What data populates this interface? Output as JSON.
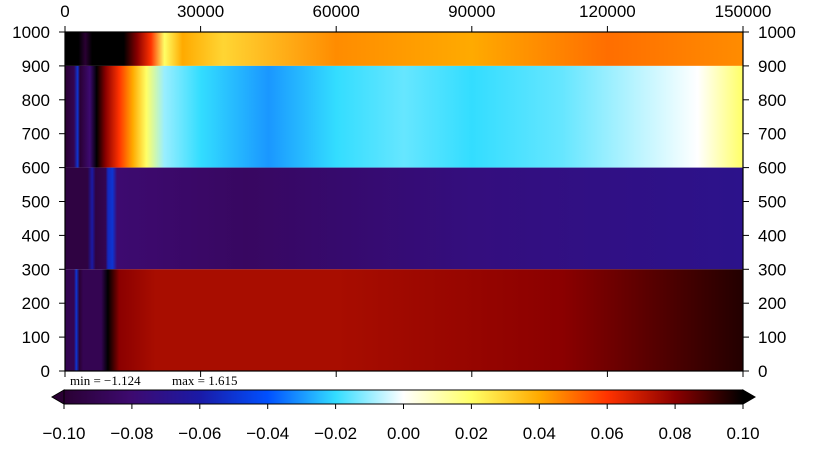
{
  "chart_data": {
    "type": "heatmap",
    "title": "",
    "xlabel": "",
    "ylabel": "",
    "xlim": [
      0,
      150000
    ],
    "ylim": [
      0,
      1000
    ],
    "x_ticks": [
      "0",
      "30000",
      "60000",
      "90000",
      "120000",
      "150000"
    ],
    "y_ticks": [
      "0",
      "100",
      "200",
      "300",
      "400",
      "500",
      "600",
      "700",
      "800",
      "900",
      "1000"
    ],
    "stats": {
      "min_text": "min = −1.124",
      "max_text": "max = 1.615",
      "min": -1.124,
      "max": 1.615
    },
    "bands": [
      {
        "y_range": [
          900,
          1000
        ],
        "profile": [
          [
            0,
            0.1
          ],
          [
            3000,
            0.1
          ],
          [
            4500,
            -0.1
          ],
          [
            6000,
            0.1
          ],
          [
            13000,
            0.1
          ],
          [
            16000,
            0.08
          ],
          [
            19000,
            0.06
          ],
          [
            22000,
            0.02
          ],
          [
            26000,
            0.04
          ],
          [
            35000,
            0.03
          ],
          [
            60000,
            0.045
          ],
          [
            90000,
            0.04
          ],
          [
            120000,
            0.05
          ],
          [
            150000,
            0.045
          ]
        ]
      },
      {
        "y_range": [
          600,
          900
        ],
        "profile": [
          [
            0,
            -0.1
          ],
          [
            2000,
            -0.09
          ],
          [
            2800,
            -0.05
          ],
          [
            3300,
            -0.1
          ],
          [
            5500,
            -0.08
          ],
          [
            7000,
            0.1
          ],
          [
            9000,
            0.08
          ],
          [
            12000,
            0.06
          ],
          [
            15000,
            0.04
          ],
          [
            18000,
            0.02
          ],
          [
            22000,
            -0.01
          ],
          [
            30000,
            -0.02
          ],
          [
            45000,
            -0.03
          ],
          [
            60000,
            -0.02
          ],
          [
            75000,
            -0.015
          ],
          [
            90000,
            -0.02
          ],
          [
            110000,
            -0.015
          ],
          [
            130000,
            -0.005
          ],
          [
            140000,
            0.0
          ],
          [
            150000,
            0.02
          ]
        ]
      },
      {
        "y_range": [
          300,
          600
        ],
        "profile": [
          [
            0,
            -0.095
          ],
          [
            5000,
            -0.095
          ],
          [
            6000,
            -0.06
          ],
          [
            6800,
            -0.095
          ],
          [
            9000,
            -0.09
          ],
          [
            9500,
            -0.055
          ],
          [
            10500,
            -0.05
          ],
          [
            11500,
            -0.08
          ],
          [
            40000,
            -0.085
          ],
          [
            90000,
            -0.075
          ],
          [
            150000,
            -0.07
          ]
        ]
      },
      {
        "y_range": [
          0,
          300
        ],
        "profile": [
          [
            0,
            -0.09
          ],
          [
            2000,
            -0.09
          ],
          [
            2500,
            -0.05
          ],
          [
            3200,
            -0.1
          ],
          [
            4000,
            -0.09
          ],
          [
            8000,
            -0.09
          ],
          [
            9500,
            0.1
          ],
          [
            12000,
            0.08
          ],
          [
            20000,
            0.075
          ],
          [
            60000,
            0.075
          ],
          [
            110000,
            0.08
          ],
          [
            150000,
            0.095
          ]
        ]
      }
    ],
    "colorbar": {
      "ticks": [
        "−0.10",
        "−0.08",
        "−0.06",
        "−0.04",
        "−0.02",
        "0.00",
        "0.02",
        "0.04",
        "0.06",
        "0.08",
        "0.10"
      ],
      "range": [
        -0.1,
        0.1
      ]
    },
    "colormap": [
      [
        -0.1,
        "#2a0033"
      ],
      [
        -0.08,
        "#3d0a70"
      ],
      [
        -0.06,
        "#1a1aa6"
      ],
      [
        -0.04,
        "#0050ff"
      ],
      [
        -0.02,
        "#33ddff"
      ],
      [
        0.0,
        "#ffffff"
      ],
      [
        0.02,
        "#ffff66"
      ],
      [
        0.04,
        "#ffaa00"
      ],
      [
        0.06,
        "#ff3300"
      ],
      [
        0.08,
        "#8b0000"
      ],
      [
        0.1,
        "#000000"
      ]
    ]
  }
}
